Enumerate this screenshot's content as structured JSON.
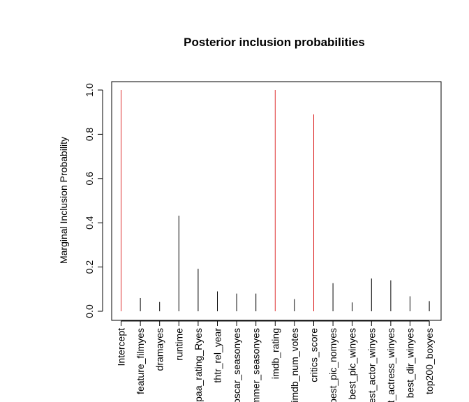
{
  "chart_data": {
    "type": "bar",
    "title": "Posterior inclusion probabilities",
    "xlabel": "",
    "ylabel": "Marginal Inclusion Probability",
    "ylim": [
      0,
      1.04
    ],
    "yticks": [
      "0.0",
      "0.2",
      "0.4",
      "0.6",
      "0.8",
      "1.0"
    ],
    "categories": [
      "Intercept",
      "feature_filmyes",
      "dramayes",
      "runtime",
      "mpaa_rating_Ryes",
      "thtr_rel_year",
      "oscar_seasonyes",
      "summer_seasonyes",
      "imdb_rating",
      "imdb_num_votes",
      "critics_score",
      "best_pic_nomyes",
      "best_pic_winyes",
      "best_actor_winyes",
      "best_actress_winyes",
      "best_dir_winyes",
      "top200_boxyes"
    ],
    "values": [
      1.0,
      0.06,
      0.042,
      0.432,
      0.192,
      0.09,
      0.08,
      0.08,
      1.0,
      0.055,
      0.89,
      0.127,
      0.04,
      0.148,
      0.14,
      0.068,
      0.046
    ],
    "highlighted": [
      true,
      false,
      false,
      false,
      false,
      false,
      false,
      false,
      true,
      false,
      true,
      false,
      false,
      false,
      false,
      false,
      false
    ],
    "colors": {
      "highlight": "#dd2a2a",
      "normal": "#000000"
    },
    "grid": false,
    "legend": "none"
  }
}
